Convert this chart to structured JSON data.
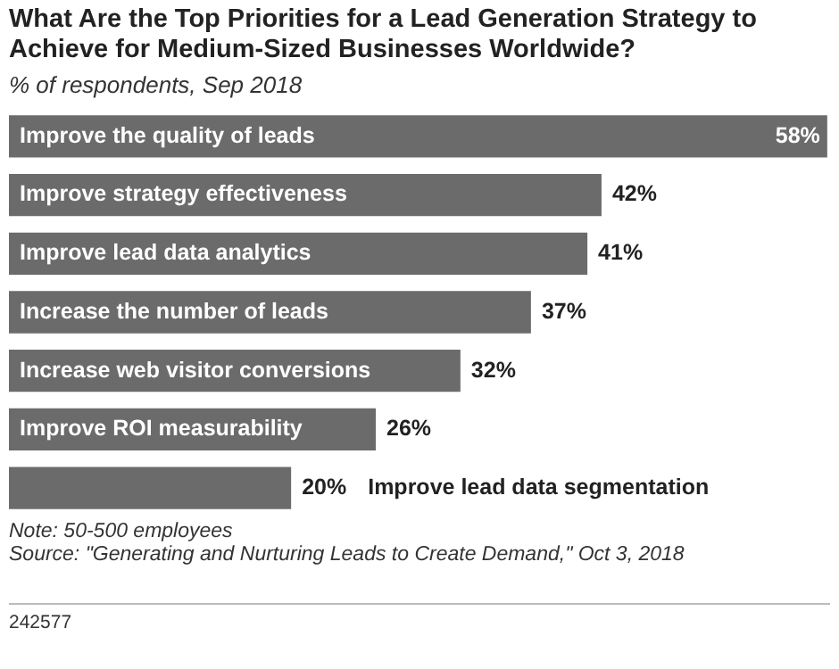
{
  "chart_data": {
    "type": "bar",
    "orientation": "horizontal",
    "title": "What Are the Top Priorities for a Lead Generation Strategy to Achieve for Medium-Sized Businesses Worldwide?",
    "subtitle": "% of respondents, Sep 2018",
    "categories": [
      "Improve the quality of leads",
      "Improve strategy effectiveness",
      "Improve lead data analytics",
      "Increase the number of leads",
      "Increase web visitor conversions",
      "Improve ROI measurability",
      "Improve lead data segmentation"
    ],
    "values": [
      58,
      42,
      41,
      37,
      32,
      26,
      20
    ],
    "value_labels": [
      "58%",
      "42%",
      "41%",
      "37%",
      "32%",
      "26%",
      "20%"
    ],
    "color": "#6b6b6b",
    "legend": false,
    "tick_labels": false,
    "annotations": [
      "Note: 50-500 employees",
      "Source: \"Generating and Nurturing Leads to Create Demand,\" Oct 3, 2018",
      "242577"
    ]
  }
}
